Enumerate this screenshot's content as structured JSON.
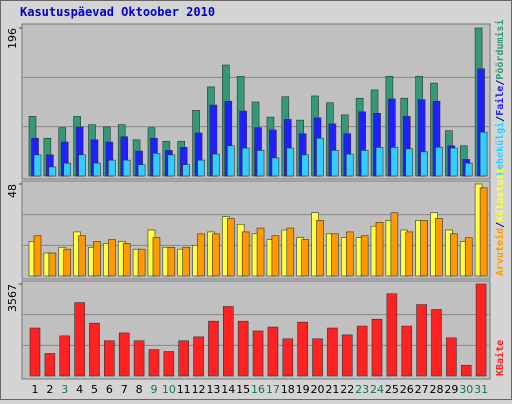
{
  "chart_data": [
    {
      "type": "bar",
      "title": "Kasutuspäevad Oktoober 2010",
      "legend_separator": "/",
      "ylim": [
        0,
        196
      ],
      "yticks": [
        196
      ],
      "series": [
        {
          "name": "Lehekülgi",
          "color": "#33ccff",
          "values": [
            28,
            12,
            17,
            28,
            17,
            21,
            21,
            15,
            30,
            28,
            15,
            21,
            29,
            40,
            37,
            34,
            24,
            37,
            28,
            50,
            34,
            29,
            34,
            38,
            38,
            36,
            32,
            38,
            37,
            17,
            58
          ]
        },
        {
          "name": "Faile",
          "color": "#2020ff",
          "values": [
            50,
            28,
            45,
            65,
            48,
            45,
            52,
            33,
            50,
            34,
            38,
            57,
            94,
            99,
            86,
            64,
            61,
            75,
            56,
            77,
            69,
            56,
            85,
            83,
            102,
            79,
            101,
            99,
            40,
            22,
            142
          ]
        },
        {
          "name": "Pöördumisi",
          "color": "#339977",
          "values": [
            79,
            50,
            64,
            79,
            68,
            65,
            68,
            48,
            64,
            46,
            46,
            87,
            118,
            147,
            132,
            98,
            78,
            105,
            74,
            106,
            97,
            81,
            103,
            114,
            132,
            103,
            132,
            123,
            60,
            40,
            196
          ]
        }
      ]
    },
    {
      "type": "bar",
      "legend_separator": "/",
      "ylim": [
        0,
        48
      ],
      "yticks": [
        48
      ],
      "series": [
        {
          "name": "Arvuteid",
          "color": "#ff9900",
          "values": [
            21,
            12,
            14,
            21,
            18,
            19,
            17,
            14,
            20,
            15,
            15,
            22,
            22,
            30,
            23,
            25,
            21,
            25,
            19,
            29,
            22,
            23,
            21,
            28,
            33,
            23,
            29,
            30,
            22,
            20,
            46
          ]
        },
        {
          "name": "Külastusi",
          "color": "#ffff44",
          "values": [
            18,
            12,
            15,
            23,
            15,
            17,
            18,
            14,
            24,
            15,
            14,
            16,
            23,
            31,
            27,
            22,
            19,
            24,
            20,
            33,
            22,
            20,
            20,
            26,
            29,
            24,
            29,
            33,
            24,
            18,
            48
          ]
        }
      ]
    },
    {
      "type": "bar",
      "ylim": [
        0,
        3567
      ],
      "yticks": [
        3567
      ],
      "categories": [
        "1",
        "2",
        "3",
        "4",
        "5",
        "6",
        "7",
        "8",
        "9",
        "10",
        "11",
        "12",
        "13",
        "14",
        "15",
        "16",
        "17",
        "18",
        "19",
        "20",
        "21",
        "22",
        "23",
        "24",
        "25",
        "26",
        "27",
        "28",
        "29",
        "30",
        "31"
      ],
      "category_colors": [
        "#000000",
        "#000000",
        "#117744",
        "#000000",
        "#000000",
        "#000000",
        "#000000",
        "#000000",
        "#117744",
        "#117744",
        "#000000",
        "#000000",
        "#000000",
        "#000000",
        "#000000",
        "#117744",
        "#117744",
        "#000000",
        "#000000",
        "#000000",
        "#000000",
        "#000000",
        "#117744",
        "#117744",
        "#000000",
        "#000000",
        "#000000",
        "#000000",
        "#000000",
        "#117744",
        "#117744"
      ],
      "series": [
        {
          "name": "KBaite",
          "color": "#ff2222",
          "values": [
            1860,
            873,
            1556,
            2846,
            2049,
            1366,
            1670,
            1366,
            1025,
            949,
            1366,
            1518,
            2125,
            2694,
            2125,
            1746,
            1898,
            1442,
            2087,
            1442,
            1860,
            1594,
            1935,
            2201,
            3188,
            1935,
            2770,
            2580,
            1480,
            417,
            3567
          ]
        }
      ]
    }
  ]
}
